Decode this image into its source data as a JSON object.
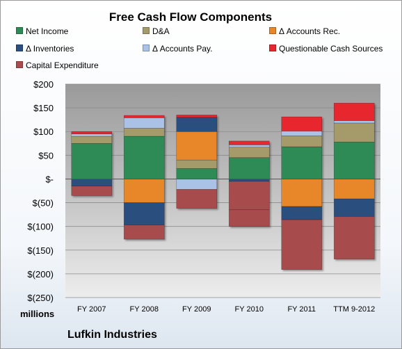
{
  "chart_data": {
    "type": "bar",
    "stacked": true,
    "title": "Free Cash Flow Components",
    "xlabel": "",
    "ylabel": "millions",
    "ylim": [
      -250,
      200
    ],
    "yticks": [
      200,
      150,
      100,
      50,
      0,
      -50,
      -100,
      -150,
      -200,
      -250
    ],
    "ytick_labels": [
      "$200",
      "$150",
      "$100",
      "$50",
      "$-",
      "$(50)",
      "$(100)",
      "$(150)",
      "$(200)",
      "$(250)"
    ],
    "categories": [
      "FY 2007",
      "FY 2008",
      "FY 2009",
      "FY 2010",
      "FY 2011",
      "TTM 9-2012"
    ],
    "grid": true,
    "legend": "top",
    "series": [
      {
        "name": "Net Income",
        "color": "#2e8b57",
        "values": [
          75,
          90,
          22,
          45,
          68,
          78
        ]
      },
      {
        "name": "D&A",
        "color": "#a59a6a",
        "values": [
          15,
          17,
          18,
          22,
          23,
          40
        ]
      },
      {
        "name": "Δ Accounts Rec.",
        "color": "#e8862a",
        "values": [
          0,
          -50,
          60,
          0,
          -58,
          -42
        ]
      },
      {
        "name": "Δ Inventories",
        "color": "#2b4f7e",
        "values": [
          -15,
          -47,
          30,
          -5,
          -28,
          -37
        ]
      },
      {
        "name": "Δ Accounts Pay.",
        "color": "#a9c2e6",
        "values": [
          5,
          22,
          -22,
          5,
          10,
          5
        ]
      },
      {
        "name": "Questionable Cash Sources",
        "color": "#e8262f",
        "values": [
          5,
          5,
          5,
          8,
          30,
          37
        ]
      },
      {
        "name": "Capital Expenditure",
        "color": "#a84c4e",
        "values": [
          -20,
          -30,
          -40,
          -60,
          -105,
          -90
        ]
      }
    ],
    "extra_negative": [
      0,
      0,
      0,
      -35,
      0,
      0
    ]
  },
  "footer": "Lufkin Industries"
}
